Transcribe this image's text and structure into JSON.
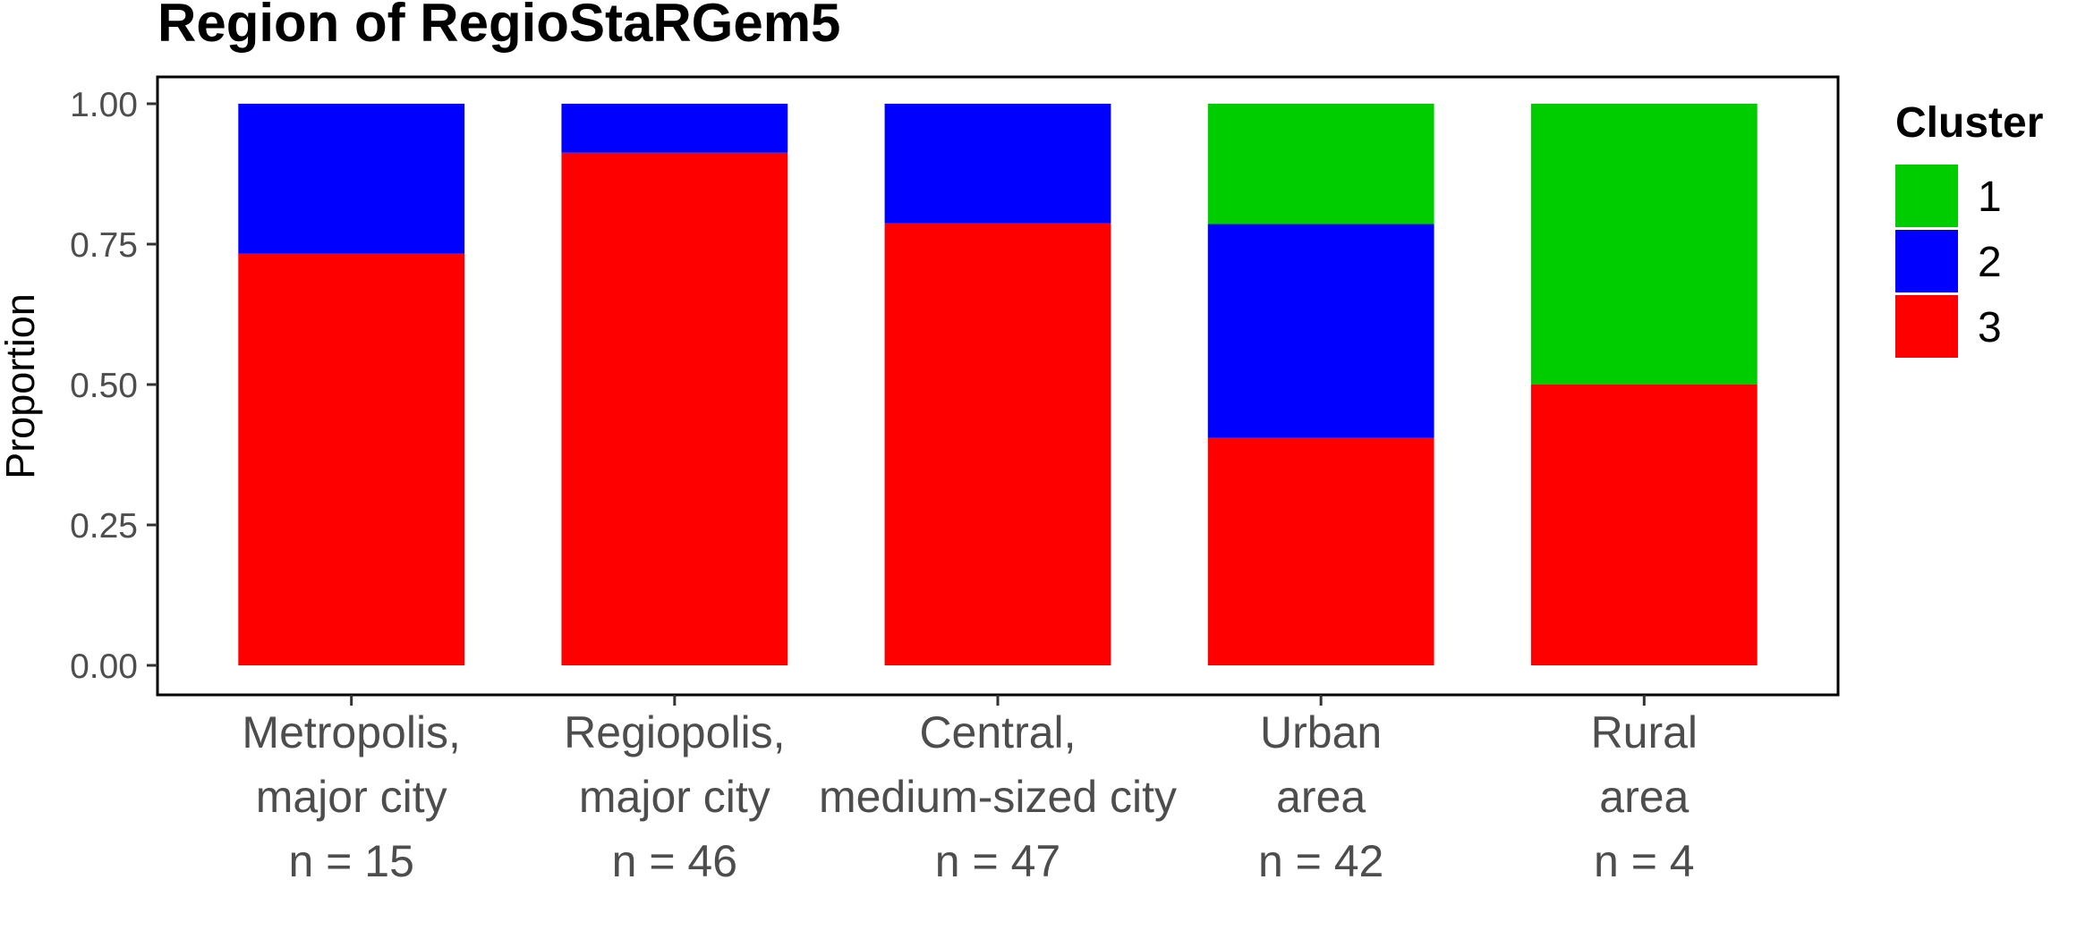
{
  "chart_data": {
    "type": "bar",
    "stacked": true,
    "title": "Region of RegioStaRGem5",
    "xlabel": "",
    "ylabel": "Proportion",
    "ylim": [
      0,
      1
    ],
    "yticks": [
      "0.00",
      "0.25",
      "0.50",
      "0.75",
      "1.00"
    ],
    "grid": false,
    "legend": {
      "title": "Cluster",
      "position": "right"
    },
    "categories": [
      [
        "Metropolis,",
        "major city",
        "n = 15"
      ],
      [
        "Regiopolis,",
        "major city",
        "n = 46"
      ],
      [
        "Central,",
        "medium-sized city",
        "n = 47"
      ],
      [
        "Urban",
        "area",
        "n = 42"
      ],
      [
        "Rural",
        "area",
        "n = 4"
      ]
    ],
    "series": [
      {
        "name": "1",
        "color": "#00cd00",
        "values": [
          0.0,
          0.0,
          0.0,
          0.214,
          0.5
        ]
      },
      {
        "name": "2",
        "color": "#0000ff",
        "values": [
          0.267,
          0.087,
          0.213,
          0.381,
          0.0
        ]
      },
      {
        "name": "3",
        "color": "#ff0000",
        "values": [
          0.733,
          0.913,
          0.787,
          0.405,
          0.5
        ]
      }
    ]
  }
}
